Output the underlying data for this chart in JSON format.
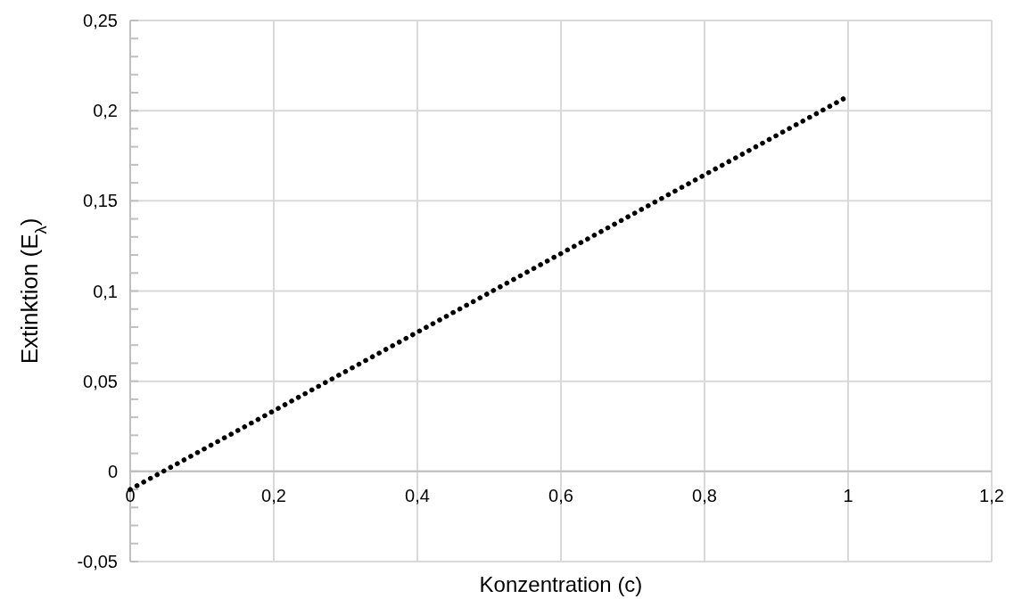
{
  "chart_data": {
    "type": "line",
    "xlabel": "Konzentration (c)",
    "ylabel": "Extinktion (E$_{λ}$)",
    "x": [
      0,
      1
    ],
    "series": [
      {
        "color": "#000000",
        "values": [
          -0.01,
          0.208
        ]
      }
    ],
    "xlim": [
      0,
      1.2
    ],
    "xticks": [
      {
        "value": 0,
        "label": "0"
      },
      {
        "value": 0.2,
        "label": "0,2"
      },
      {
        "value": 0.4,
        "label": "0,4"
      },
      {
        "value": 0.6,
        "label": "0,6"
      },
      {
        "value": 0.8,
        "label": "0,8"
      },
      {
        "value": 1,
        "label": "1"
      },
      {
        "value": 1.2,
        "label": "1,2"
      }
    ],
    "ylim": [
      -0.05,
      0.25
    ],
    "yticks": [
      {
        "value": -0.05,
        "label": "-0,05"
      },
      {
        "value": -0.04,
        "label": null
      },
      {
        "value": -0.03,
        "label": null
      },
      {
        "value": -0.02,
        "label": null
      },
      {
        "value": -0.01,
        "label": null
      },
      {
        "value": 0,
        "label": "0"
      },
      {
        "value": 0.01,
        "label": null
      },
      {
        "value": 0.02,
        "label": null
      },
      {
        "value": 0.03,
        "label": null
      },
      {
        "value": 0.04,
        "label": null
      },
      {
        "value": 0.05,
        "label": "0,05"
      },
      {
        "value": 0.06,
        "label": null
      },
      {
        "value": 0.07,
        "label": null
      },
      {
        "value": 0.08,
        "label": null
      },
      {
        "value": 0.09,
        "label": null
      },
      {
        "value": 0.1,
        "label": "0,1"
      },
      {
        "value": 0.11,
        "label": null
      },
      {
        "value": 0.12,
        "label": null
      },
      {
        "value": 0.13,
        "label": null
      },
      {
        "value": 0.14,
        "label": null
      },
      {
        "value": 0.15,
        "label": "0,15"
      },
      {
        "value": 0.16,
        "label": null
      },
      {
        "value": 0.17,
        "label": null
      },
      {
        "value": 0.18,
        "label": null
      },
      {
        "value": 0.19,
        "label": null
      },
      {
        "value": 0.2,
        "label": "0,2"
      },
      {
        "value": 0.21,
        "label": null
      },
      {
        "value": 0.22,
        "label": null
      },
      {
        "value": 0.23,
        "label": null
      },
      {
        "value": 0.24,
        "label": null
      },
      {
        "value": 0.25,
        "label": "0,25"
      }
    ],
    "grid": true,
    "marker": "none",
    "line_style": "dotted"
  }
}
